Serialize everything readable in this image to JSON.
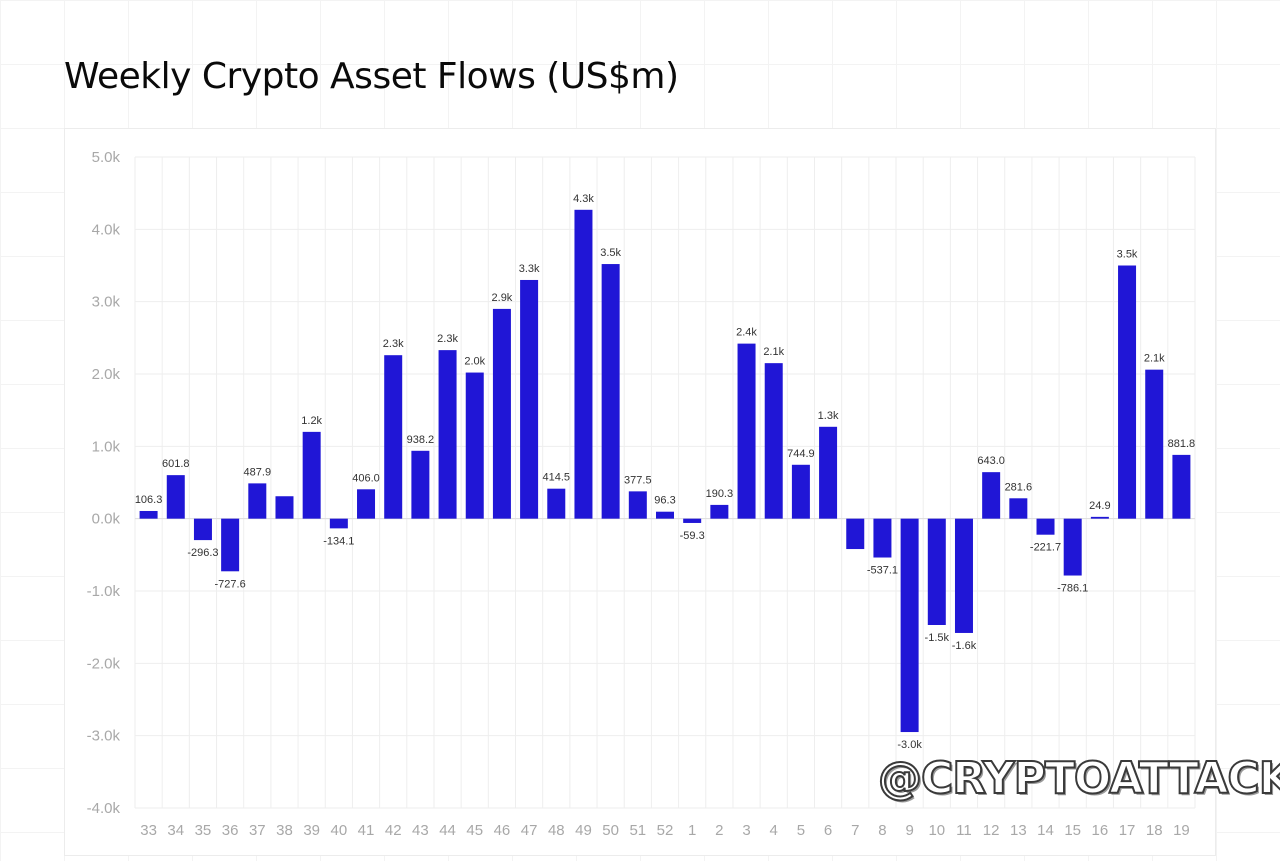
{
  "title": "Weekly Crypto Asset Flows (US$m)",
  "watermark": "@CRYPTOATTACK",
  "colors": {
    "bar": "#2016d6",
    "grid": "#eeeeee",
    "tick_text": "#a8a8a8",
    "label_text": "#333333"
  },
  "chart_data": {
    "type": "bar",
    "title": "Weekly Crypto Asset Flows (US$m)",
    "xlabel": "",
    "ylabel": "",
    "ylim": [
      -4000,
      5000
    ],
    "grid": true,
    "yticks": [
      {
        "value": 5000,
        "label": "5.0k"
      },
      {
        "value": 4000,
        "label": "4.0k"
      },
      {
        "value": 3000,
        "label": "3.0k"
      },
      {
        "value": 2000,
        "label": "2.0k"
      },
      {
        "value": 1000,
        "label": "1.0k"
      },
      {
        "value": 0,
        "label": "0.0k"
      },
      {
        "value": -1000,
        "label": "-1.0k"
      },
      {
        "value": -2000,
        "label": "-2.0k"
      },
      {
        "value": -3000,
        "label": "-3.0k"
      },
      {
        "value": -4000,
        "label": "-4.0k"
      }
    ],
    "categories": [
      "33",
      "34",
      "35",
      "36",
      "37",
      "38",
      "39",
      "40",
      "41",
      "42",
      "43",
      "44",
      "45",
      "46",
      "47",
      "48",
      "49",
      "50",
      "51",
      "52",
      "1",
      "2",
      "3",
      "4",
      "5",
      "6",
      "7",
      "8",
      "9",
      "10",
      "11",
      "12",
      "13",
      "14",
      "15",
      "16",
      "17",
      "18",
      "19"
    ],
    "values": [
      106.3,
      601.8,
      -296.3,
      -727.6,
      487.9,
      310,
      1200,
      -134.1,
      406.0,
      2260,
      938.2,
      2330,
      2020,
      2900,
      3300,
      414.5,
      4270,
      3520,
      377.5,
      96.3,
      -59.3,
      190.3,
      2420,
      2150,
      744.9,
      1270,
      -420,
      -537.1,
      -2950,
      -1470,
      -1580,
      643.0,
      281.6,
      -221.7,
      -786.1,
      24.9,
      3500,
      2060,
      881.8
    ],
    "data_labels": [
      "106.3",
      "601.8",
      "-296.3",
      "-727.6",
      "487.9",
      "",
      "1.2k",
      "-134.1",
      "406.0",
      "2.3k",
      "938.2",
      "2.3k",
      "2.0k",
      "2.9k",
      "3.3k",
      "414.5",
      "4.3k",
      "3.5k",
      "377.5",
      "96.3",
      "-59.3",
      "190.3",
      "2.4k",
      "2.1k",
      "744.9",
      "1.3k",
      "",
      "-537.1",
      "-3.0k",
      "-1.5k",
      "-1.6k",
      "643.0",
      "281.6",
      "-221.7",
      "-786.1",
      "24.9",
      "3.5k",
      "2.1k",
      "881.8"
    ]
  }
}
